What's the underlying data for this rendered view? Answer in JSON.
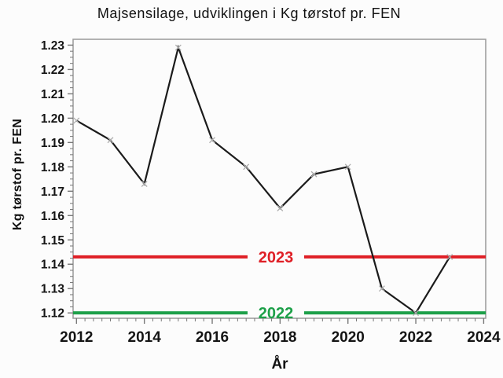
{
  "page": {
    "background_color": "#fcfcfc"
  },
  "chart_data": {
    "type": "line",
    "title": "Majsensilage, udviklingen i Kg tørstof pr. FEN",
    "xlabel": "År",
    "ylabel": "Kg tørstof pr. FEN",
    "x": [
      2012,
      2013,
      2014,
      2015,
      2016,
      2017,
      2018,
      2019,
      2020,
      2021,
      2022,
      2023
    ],
    "series": [
      {
        "name": "Kg tørstof pr. FEN",
        "values": [
          1.199,
          1.191,
          1.173,
          1.229,
          1.191,
          1.18,
          1.163,
          1.177,
          1.18,
          1.13,
          1.12,
          1.143
        ]
      }
    ],
    "xlim": [
      2011.9,
      2024.06
    ],
    "ylim": [
      1.1178,
      1.2324
    ],
    "x_ticks": [
      2012,
      2014,
      2016,
      2018,
      2020,
      2022,
      2024
    ],
    "x_tick_labels": [
      "2012",
      "2014",
      "2016",
      "2018",
      "2020",
      "2022",
      "2024"
    ],
    "x_minor_step": 0.25,
    "y_ticks": [
      1.12,
      1.13,
      1.14,
      1.15,
      1.16,
      1.17,
      1.18,
      1.19,
      1.2,
      1.21,
      1.22,
      1.23
    ],
    "y_tick_labels": [
      "1.12",
      "1.13",
      "1.14",
      "1.15",
      "1.16",
      "1.17",
      "1.18",
      "1.19",
      "1.20",
      "1.21",
      "1.22",
      "1.23"
    ],
    "y_minor_step": 0.0025,
    "grid": false,
    "legend": "none",
    "marker": "x",
    "line_color": "#1b1b1b",
    "marker_color": "#aeaeae",
    "frame_color": "#9a9a9a",
    "tick_color": "#787878",
    "reference_lines": [
      {
        "label": "2023",
        "value": 1.143,
        "color": "#df1f26"
      },
      {
        "label": "2022",
        "value": 1.12,
        "color": "#1da049"
      }
    ]
  }
}
